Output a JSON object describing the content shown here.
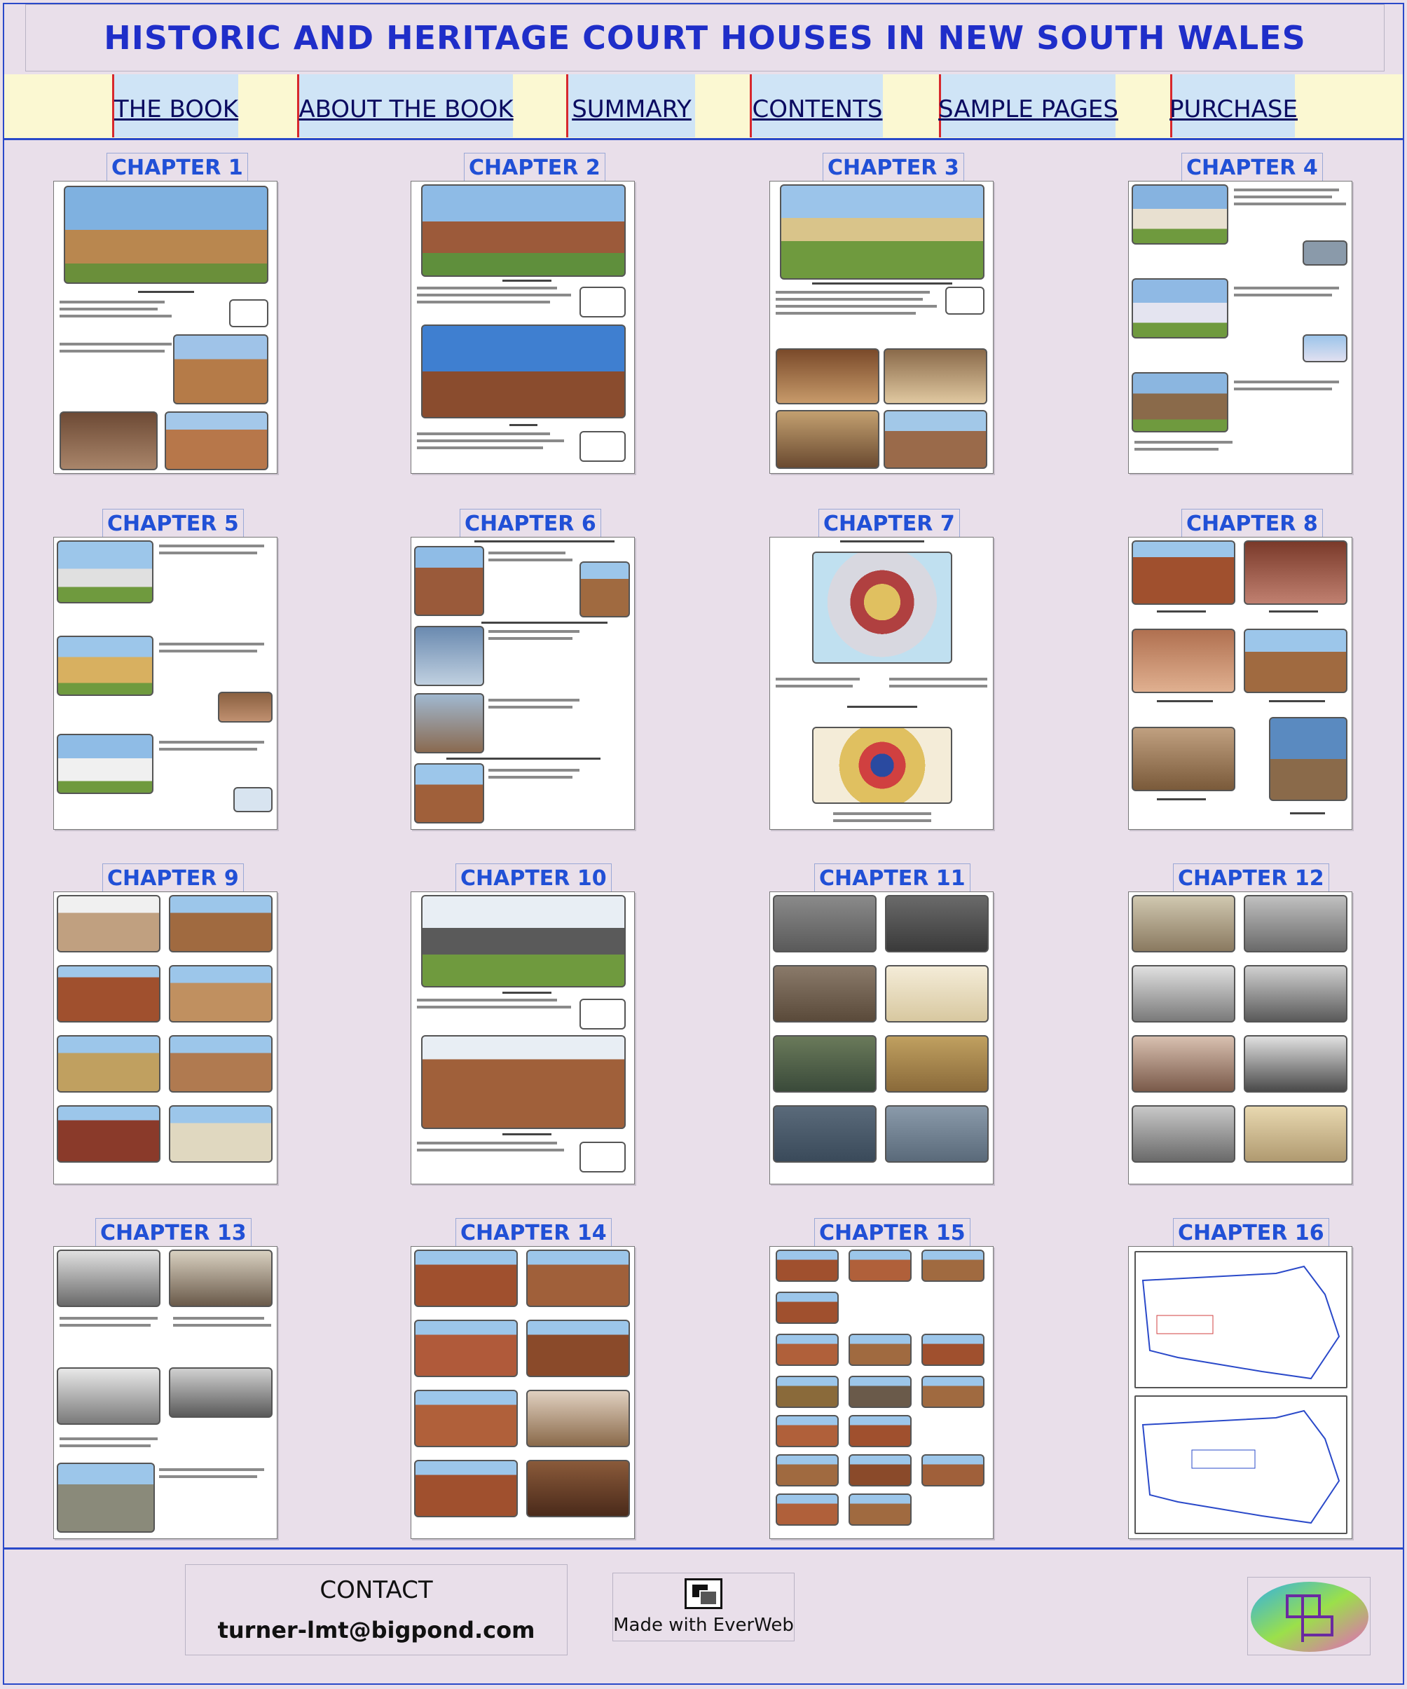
{
  "site": {
    "title": "HISTORIC AND HERITAGE COURT HOUSES IN NEW SOUTH WALES"
  },
  "nav": {
    "items": [
      {
        "label": "THE BOOK"
      },
      {
        "label": "ABOUT THE BOOK"
      },
      {
        "label": "SUMMARY"
      },
      {
        "label": "CONTENTS"
      },
      {
        "label": "SAMPLE PAGES"
      },
      {
        "label": "PURCHASE"
      }
    ]
  },
  "chapters": [
    {
      "label": "CHAPTER 1"
    },
    {
      "label": "CHAPTER 2"
    },
    {
      "label": "CHAPTER 3"
    },
    {
      "label": "CHAPTER 4"
    },
    {
      "label": "CHAPTER 5"
    },
    {
      "label": "CHAPTER 6"
    },
    {
      "label": "CHAPTER 7"
    },
    {
      "label": "CHAPTER 8"
    },
    {
      "label": "CHAPTER 9"
    },
    {
      "label": "CHAPTER 10"
    },
    {
      "label": "CHAPTER 11"
    },
    {
      "label": "CHAPTER 12"
    },
    {
      "label": "CHAPTER 13"
    },
    {
      "label": "CHAPTER 14"
    },
    {
      "label": "CHAPTER 15"
    },
    {
      "label": "CHAPTER 16"
    }
  ],
  "footer": {
    "contact_heading": "CONTACT",
    "contact_email": "turner-lmt@bigpond.com",
    "everweb_text": "Made with EverWeb"
  },
  "colors": {
    "background": "#e9dfea",
    "title_blue": "#1f2ec9",
    "chapter_blue": "#2150d6",
    "nav_bar": "#fbf8d2",
    "nav_item": "#cfe4f6",
    "nav_separator": "#d7282d",
    "rule_blue": "#2a49c9"
  }
}
